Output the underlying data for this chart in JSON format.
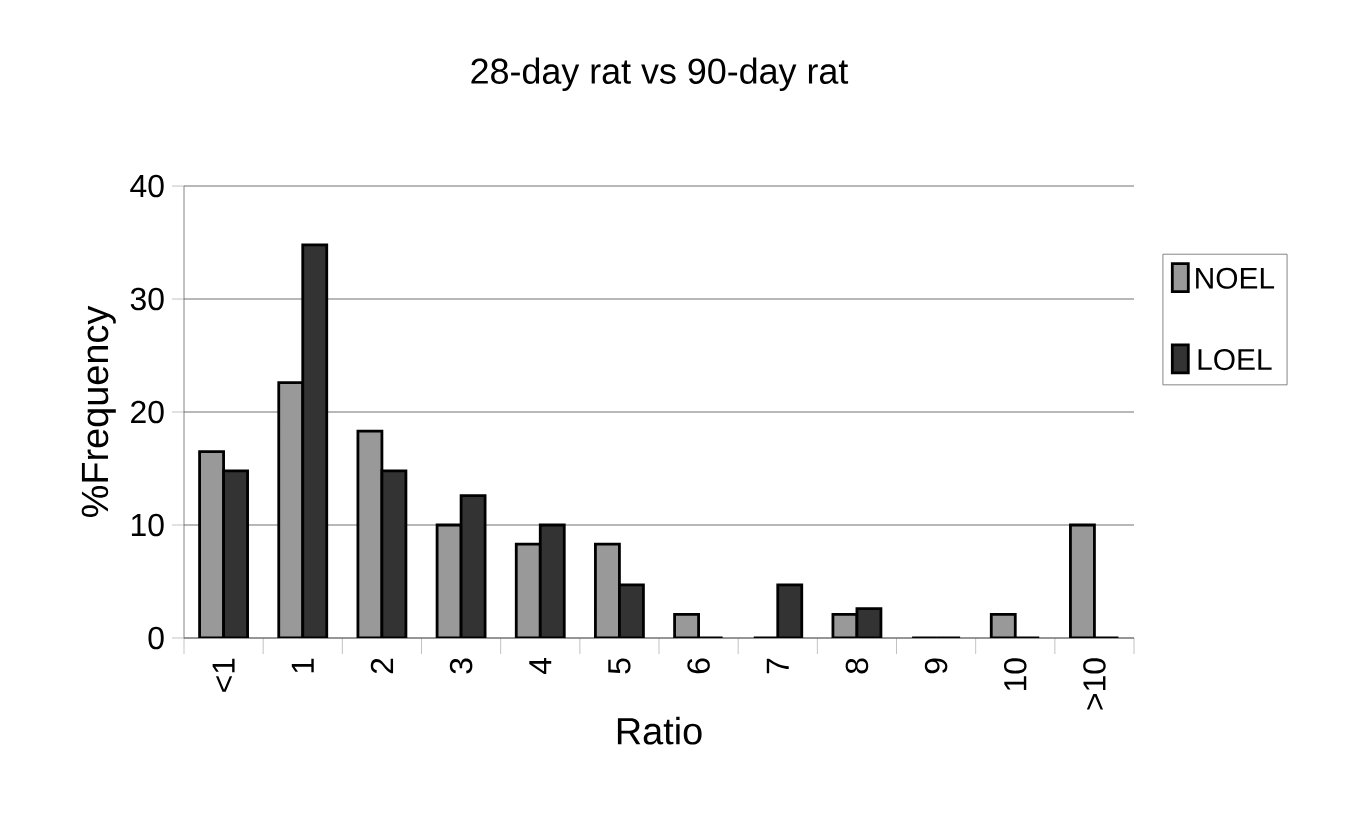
{
  "chart_data": {
    "type": "bar",
    "title": "28-day rat vs 90-day rat",
    "xlabel": "Ratio",
    "ylabel": "%Frequency",
    "categories": [
      "<1",
      "1",
      "2",
      "3",
      "4",
      "5",
      "6",
      "7",
      "8",
      "9",
      "10",
      ">10"
    ],
    "series": [
      {
        "name": "NOEL",
        "color": "#999999",
        "values": [
          16.5,
          22.6,
          18.3,
          10.0,
          8.3,
          8.3,
          2.1,
          0,
          2.1,
          0,
          2.1,
          10.0
        ]
      },
      {
        "name": "LOEL",
        "color": "#333333",
        "values": [
          14.8,
          34.8,
          14.8,
          12.6,
          10.0,
          4.7,
          0,
          4.7,
          2.6,
          0,
          0,
          0
        ]
      }
    ],
    "ylim": [
      0,
      40
    ],
    "yticks": [
      0,
      10,
      20,
      30,
      40
    ],
    "grid": "y",
    "legend": "right"
  }
}
